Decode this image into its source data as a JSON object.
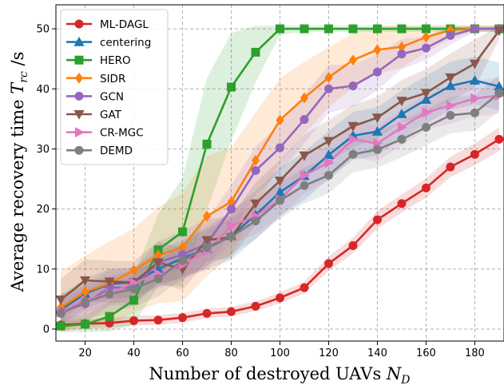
{
  "chart_data": {
    "type": "line",
    "xlabel": "Number of destroyed UAVs N_D",
    "ylabel": "Average recovery time T_rc /s",
    "xlim": [
      8,
      192
    ],
    "ylim": [
      -2,
      54
    ],
    "xticks": [
      20,
      40,
      60,
      80,
      100,
      120,
      140,
      160,
      180
    ],
    "yticks": [
      0,
      10,
      20,
      30,
      40,
      50
    ],
    "grid": true,
    "grid_style": "dashed",
    "legend_position": "top-left",
    "x": [
      10,
      20,
      30,
      40,
      50,
      60,
      70,
      80,
      90,
      100,
      110,
      120,
      130,
      140,
      150,
      160,
      170,
      180,
      190
    ],
    "series": [
      {
        "name": "ML-DAGL",
        "color": "#d62728",
        "marker": "circle",
        "values": [
          0.7,
          0.9,
          1.0,
          1.4,
          1.5,
          1.9,
          2.6,
          2.9,
          3.8,
          5.2,
          6.9,
          10.9,
          13.9,
          18.2,
          20.9,
          23.5,
          27.0,
          29.1,
          31.6
        ],
        "band": [
          0.8,
          0.8,
          0.8,
          0.8,
          0.8,
          0.8,
          0.8,
          0.8,
          0.8,
          0.9,
          1.0,
          1.2,
          1.3,
          1.5,
          1.5,
          1.6,
          1.7,
          1.8,
          2.0
        ]
      },
      {
        "name": "centering",
        "color": "#1f77b4",
        "marker": "triangle-up",
        "values": [
          3.2,
          5.9,
          7.5,
          7.8,
          10.0,
          11.8,
          13.4,
          15.5,
          19.0,
          22.8,
          25.5,
          29.0,
          32.2,
          32.9,
          35.8,
          38.2,
          40.5,
          41.4,
          40.4
        ],
        "band": [
          2.5,
          2.5,
          2.5,
          2.5,
          3,
          3,
          3.5,
          4,
          4,
          4,
          4,
          4,
          4,
          4,
          4,
          4,
          4,
          4,
          4
        ]
      },
      {
        "name": "HERO",
        "color": "#2ca02c",
        "marker": "square",
        "values": [
          0.5,
          0.8,
          2.1,
          4.8,
          13.2,
          16.2,
          30.8,
          40.3,
          46.1,
          50,
          50,
          50,
          50,
          50,
          50,
          50,
          50,
          50,
          50
        ],
        "band": [
          1.5,
          1.5,
          2.5,
          4,
          6,
          9,
          11,
          9,
          5,
          1,
          0.5,
          0.5,
          0.5,
          0.5,
          0.5,
          0.5,
          0.5,
          0.5,
          0.5
        ]
      },
      {
        "name": "SIDR",
        "color": "#ff7f0e",
        "marker": "diamond",
        "values": [
          3.6,
          6.2,
          7.6,
          9.8,
          12.3,
          13.6,
          18.8,
          21.2,
          28.1,
          34.8,
          38.5,
          41.9,
          44.8,
          46.5,
          47.0,
          48.6,
          49.8,
          50,
          50
        ],
        "band": [
          6,
          6,
          7,
          7,
          8,
          9,
          10,
          9,
          8,
          7,
          6,
          5,
          4.5,
          4,
          3.5,
          2.5,
          1.5,
          0.5,
          0.5
        ]
      },
      {
        "name": "GCN",
        "color": "#9467bd",
        "marker": "circle",
        "values": [
          2.9,
          4.2,
          6.9,
          6.9,
          11.1,
          12.4,
          14.2,
          20.0,
          26.4,
          30.2,
          34.9,
          40.0,
          40.5,
          42.8,
          45.8,
          46.8,
          48.9,
          50,
          50
        ],
        "band": [
          3,
          3,
          3,
          3,
          3.5,
          4,
          4,
          4,
          4,
          4,
          4,
          4,
          3.5,
          3,
          2.5,
          2,
          1.5,
          0.5,
          0.5
        ]
      },
      {
        "name": "GAT",
        "color": "#8c564b",
        "marker": "triangle-down",
        "values": [
          4.9,
          8.1,
          7.9,
          7.8,
          11.1,
          10.0,
          14.8,
          15.3,
          20.9,
          24.7,
          28.9,
          31.3,
          33.8,
          35.2,
          38.0,
          39.3,
          41.9,
          44.2,
          49.7
        ],
        "band": [
          3.5,
          3.5,
          3.5,
          3.5,
          3.5,
          3.5,
          3.5,
          3.5,
          3.5,
          3.5,
          3.5,
          3.5,
          3.5,
          3.5,
          3.5,
          4,
          4,
          4,
          1.5
        ]
      },
      {
        "name": "CR-MGC",
        "color": "#e377c2",
        "marker": "triangle-right",
        "values": [
          2.9,
          4.8,
          5.9,
          7.7,
          9.2,
          10.7,
          13.0,
          17.2,
          18.8,
          21.6,
          25.6,
          27.7,
          31.6,
          30.9,
          33.6,
          36.1,
          37.2,
          38.4,
          38.9
        ],
        "band": [
          2,
          2,
          2,
          2,
          2.5,
          2.5,
          3,
          3,
          3,
          3,
          3,
          3,
          3,
          3,
          3,
          3,
          3,
          3,
          3
        ]
      },
      {
        "name": "DEMD",
        "color": "#7f7f7f",
        "marker": "circle",
        "values": [
          2.6,
          4.5,
          5.8,
          6.7,
          8.4,
          11.4,
          13.6,
          15.4,
          18.0,
          21.4,
          23.9,
          25.6,
          29.1,
          29.9,
          31.6,
          33.6,
          35.6,
          36.0,
          39.3
        ],
        "band": [
          3,
          3,
          3,
          3,
          3,
          3,
          3,
          3,
          3,
          3,
          3,
          3,
          3,
          3,
          3,
          3,
          3,
          3,
          3
        ]
      }
    ]
  }
}
